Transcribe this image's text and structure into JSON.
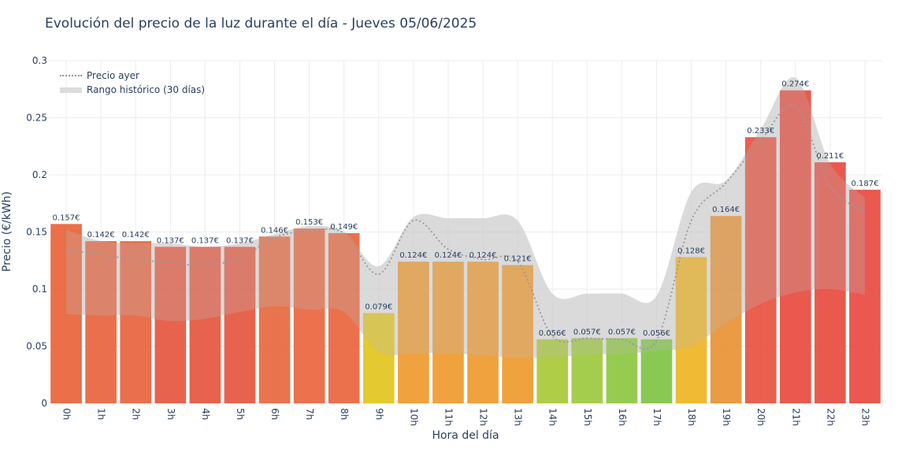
{
  "chart_data": {
    "type": "bar",
    "title": "Evolución del precio de la luz durante el día - Jueves 05/06/2025",
    "xlabel": "Hora del día",
    "ylabel": "Precio (€/kWh)",
    "ylim": [
      0,
      0.3
    ],
    "yticks": [
      0,
      0.05,
      0.1,
      0.15,
      0.2,
      0.25,
      0.3
    ],
    "ytick_labels": [
      "0",
      "0.05",
      "0.1",
      "0.15",
      "0.2",
      "0.25",
      "0.3"
    ],
    "categories": [
      "0h",
      "1h",
      "2h",
      "3h",
      "4h",
      "5h",
      "6h",
      "7h",
      "8h",
      "9h",
      "10h",
      "11h",
      "12h",
      "13h",
      "14h",
      "15h",
      "16h",
      "17h",
      "18h",
      "19h",
      "20h",
      "21h",
      "22h",
      "23h"
    ],
    "values": [
      0.157,
      0.142,
      0.142,
      0.137,
      0.137,
      0.137,
      0.146,
      0.153,
      0.149,
      0.079,
      0.124,
      0.124,
      0.124,
      0.121,
      0.056,
      0.057,
      0.057,
      0.056,
      0.128,
      0.164,
      0.233,
      0.274,
      0.211,
      0.187
    ],
    "value_labels": [
      "0.157€",
      "0.142€",
      "0.142€",
      "0.137€",
      "0.137€",
      "0.137€",
      "0.146€",
      "0.153€",
      "0.149€",
      "0.079€",
      "0.124€",
      "0.124€",
      "0.124€",
      "0.121€",
      "0.056€",
      "0.057€",
      "0.057€",
      "0.056€",
      "0.128€",
      "0.164€",
      "0.233€",
      "0.274€",
      "0.211€",
      "0.187€"
    ],
    "bar_colors": [
      "#e95f35",
      "#e8603a",
      "#e8603a",
      "#e6523a",
      "#e6523a",
      "#e6523a",
      "#e8653a",
      "#e9633a",
      "#e9623a",
      "#e0c41a",
      "#ee982a",
      "#ee982a",
      "#ee982a",
      "#ee982a",
      "#a6c832",
      "#9bc83a",
      "#8ac63c",
      "#7cc340",
      "#eeb21e",
      "#e89030",
      "#e84e3a",
      "#e8473b",
      "#e8473b",
      "#e8463c"
    ],
    "series": [
      {
        "name": "Precio ayer",
        "style": "dotted",
        "color": "#999999",
        "values": [
          0.135,
          0.13,
          0.126,
          0.123,
          0.121,
          0.127,
          0.145,
          0.151,
          0.149,
          0.113,
          0.16,
          0.135,
          0.126,
          0.124,
          0.059,
          0.057,
          0.056,
          0.055,
          0.16,
          0.193,
          0.23,
          0.26,
          0.19,
          0.168
        ]
      },
      {
        "name": "Rango histórico (30 días)",
        "style": "band",
        "color": "#d3d3d3",
        "upper": [
          0.152,
          0.142,
          0.14,
          0.14,
          0.137,
          0.14,
          0.148,
          0.155,
          0.15,
          0.12,
          0.163,
          0.162,
          0.162,
          0.16,
          0.096,
          0.096,
          0.096,
          0.094,
          0.185,
          0.195,
          0.24,
          0.285,
          0.21,
          0.18
        ],
        "lower": [
          0.078,
          0.077,
          0.077,
          0.072,
          0.074,
          0.08,
          0.085,
          0.082,
          0.08,
          0.045,
          0.044,
          0.044,
          0.042,
          0.04,
          0.04,
          0.043,
          0.043,
          0.046,
          0.05,
          0.07,
          0.087,
          0.097,
          0.1,
          0.095
        ]
      }
    ],
    "legend_position": "top-left",
    "grid": true
  }
}
